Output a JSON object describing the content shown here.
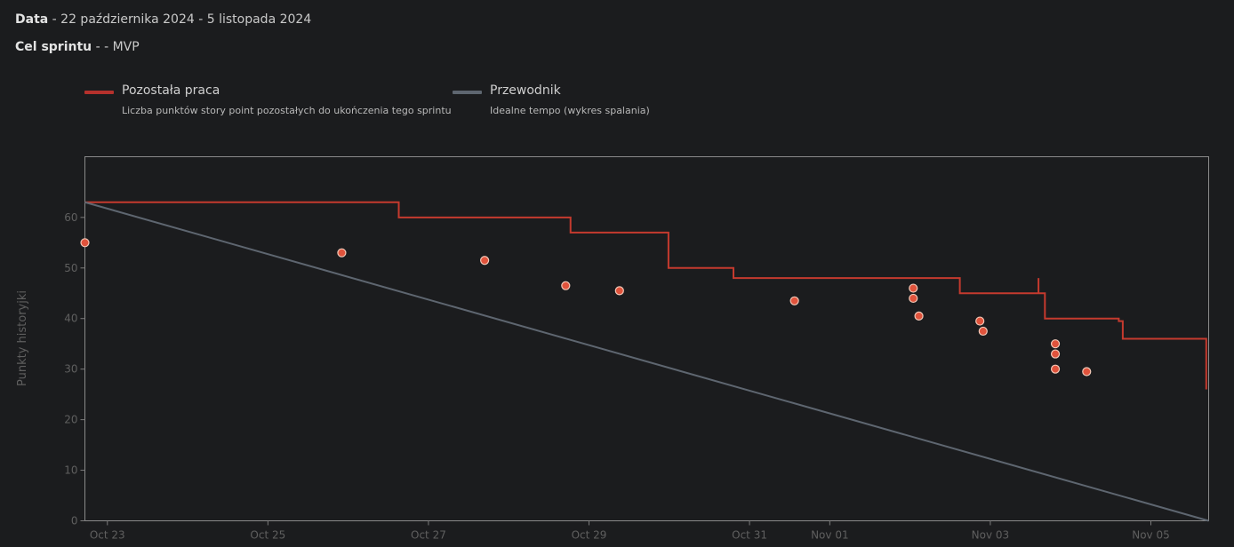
{
  "header": {
    "date_label": "Data",
    "date_value": " - 22 października 2024 - 5 listopada 2024",
    "goal_label": "Cel sprintu",
    "goal_value": " - - MVP"
  },
  "legend": {
    "remaining": {
      "title": "Pozostała praca",
      "description": "Liczba punktów story point pozostałych do ukończenia tego sprintu",
      "color": "#b5312c"
    },
    "guide": {
      "title": "Przewodnik",
      "description": "Idealne tempo (wykres spalania)",
      "color": "#5e6670"
    }
  },
  "chart_data": {
    "type": "line",
    "ylabel": "Punkty historyjki",
    "xlabel": "",
    "x_tick_labels": [
      "Oct 23",
      "Oct 25",
      "Oct 27",
      "Oct 29",
      "Oct 31",
      "Nov 01",
      "Nov 03",
      "Nov 05"
    ],
    "x_tick_days": [
      1,
      3,
      5,
      7,
      9,
      10,
      12,
      14
    ],
    "x_range_days": [
      0.72,
      14.72
    ],
    "y_ticks": [
      0,
      10,
      20,
      30,
      40,
      50,
      60
    ],
    "ylim": [
      0,
      72
    ],
    "grid": false,
    "series": [
      {
        "name": "Pozostała praca",
        "kind": "step",
        "color": "#c53a2e",
        "steps": [
          {
            "day": 0.72,
            "value": 63
          },
          {
            "day": 4.63,
            "value": 60
          },
          {
            "day": 6.77,
            "value": 57
          },
          {
            "day": 7.99,
            "value": 50
          },
          {
            "day": 8.8,
            "value": 48
          },
          {
            "day": 11.62,
            "value": 45
          },
          {
            "day": 12.68,
            "value": 40
          },
          {
            "day": 13.6,
            "value": 39.5
          },
          {
            "day": 13.65,
            "value": 36
          },
          {
            "day": 14.69,
            "value": 26
          }
        ],
        "spike": {
          "day": 12.6,
          "value": 48
        }
      },
      {
        "name": "Przewodnik",
        "kind": "line",
        "color": "#5e6670",
        "points": [
          {
            "day": 0.72,
            "value": 63
          },
          {
            "day": 14.72,
            "value": 0
          }
        ]
      },
      {
        "name": "",
        "kind": "markers",
        "color": "#e0533c",
        "points": [
          {
            "day": 0.72,
            "value": 55
          },
          {
            "day": 3.92,
            "value": 53
          },
          {
            "day": 5.7,
            "value": 51.5
          },
          {
            "day": 6.71,
            "value": 46.5
          },
          {
            "day": 7.38,
            "value": 45.5
          },
          {
            "day": 9.56,
            "value": 43.5
          },
          {
            "day": 11.04,
            "value": 46
          },
          {
            "day": 11.04,
            "value": 44
          },
          {
            "day": 11.11,
            "value": 40.5
          },
          {
            "day": 11.87,
            "value": 39.5
          },
          {
            "day": 11.91,
            "value": 37.5
          },
          {
            "day": 12.81,
            "value": 35
          },
          {
            "day": 12.81,
            "value": 33
          },
          {
            "day": 12.81,
            "value": 30
          },
          {
            "day": 13.2,
            "value": 29.5
          }
        ]
      }
    ]
  }
}
